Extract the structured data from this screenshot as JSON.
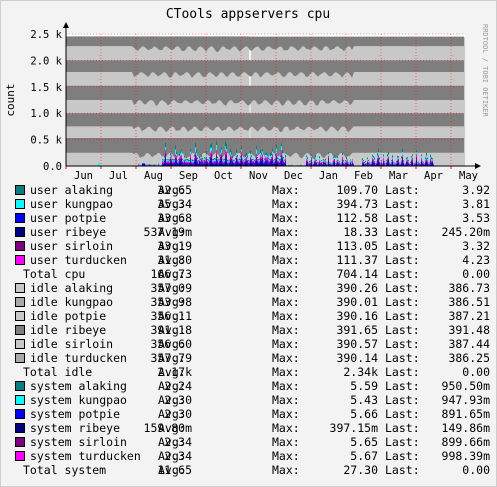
{
  "chart_data": {
    "type": "area",
    "title": "CTools appservers cpu",
    "ylabel": "count",
    "watermark": "RRDTOOL / TOBI OETIKER",
    "ylim": [
      0,
      2500
    ],
    "y_ticks": [
      {
        "value": 0,
        "label": "0.0"
      },
      {
        "value": 500,
        "label": "0.5 k"
      },
      {
        "value": 1000,
        "label": "1.0 k"
      },
      {
        "value": 1500,
        "label": "1.5 k"
      },
      {
        "value": 2000,
        "label": "2.0 k"
      },
      {
        "value": 2500,
        "label": "2.5 k"
      }
    ],
    "x_labels": [
      "Jun",
      "Jul",
      "Aug",
      "Sep",
      "Oct",
      "Nov",
      "Dec",
      "Jan",
      "Feb",
      "Mar",
      "Apr",
      "May"
    ],
    "grid": true,
    "colors": {
      "background": "#f3f3f3",
      "plot": "#ffffff",
      "grid": "#ff0000",
      "idle_light": "#c8c8c8",
      "idle_dark": "#7e7e7e"
    },
    "bands": [
      {
        "name": "idle-dark-top",
        "from": 2270,
        "to": 2450
      },
      {
        "name": "idle-dark-1",
        "from": 1780,
        "to": 2000
      },
      {
        "name": "idle-dark-2",
        "from": 1250,
        "to": 1520
      },
      {
        "name": "idle-dark-3",
        "from": 750,
        "to": 1000
      },
      {
        "name": "idle-dark-4",
        "from": 250,
        "to": 530
      }
    ],
    "legend_groups": [
      {
        "rows": [
          {
            "name": "user alaking",
            "color": "#008080",
            "avg": "32.65",
            "max": "109.70",
            "last": "3.92"
          },
          {
            "name": "user kungpao",
            "color": "#00ffff",
            "avg": "35.34",
            "max": "394.73",
            "last": "3.81"
          },
          {
            "name": "user potpie",
            "color": "#0000ff",
            "avg": "33.68",
            "max": "112.58",
            "last": "3.53"
          },
          {
            "name": "user ribeye",
            "color": "#000080",
            "avg": "537.19m",
            "max": "18.33",
            "last": "245.20m"
          },
          {
            "name": "user sirloin",
            "color": "#800080",
            "avg": "33.19",
            "max": "113.05",
            "last": "3.32"
          },
          {
            "name": "user turducken",
            "color": "#ff00ff",
            "avg": "31.80",
            "max": "111.37",
            "last": "4.23"
          }
        ],
        "total": {
          "name": "Total cpu",
          "avg": "166.73",
          "max": "704.14",
          "last": "0.00"
        }
      },
      {
        "rows": [
          {
            "name": "idle alaking",
            "color": "#c8c8c8",
            "avg": "357.09",
            "max": "390.26",
            "last": "386.73"
          },
          {
            "name": "idle kungpao",
            "color": "#a8a8a8",
            "avg": "353.98",
            "max": "390.01",
            "last": "386.51"
          },
          {
            "name": "idle potpie",
            "color": "#c8c8c8",
            "avg": "356.11",
            "max": "390.16",
            "last": "387.21"
          },
          {
            "name": "idle ribeye",
            "color": "#7e7e7e",
            "avg": "391.18",
            "max": "391.65",
            "last": "391.48"
          },
          {
            "name": "idle sirloin",
            "color": "#c8c8c8",
            "avg": "356.60",
            "max": "390.57",
            "last": "387.44"
          },
          {
            "name": "idle turducken",
            "color": "#a8a8a8",
            "avg": "357.79",
            "max": "390.14",
            "last": "386.25"
          }
        ],
        "total": {
          "name": "Total idle",
          "avg": "2.17k",
          "max": "2.34k",
          "last": "0.00"
        }
      },
      {
        "rows": [
          {
            "name": "system alaking",
            "color": "#008080",
            "avg": "2.24",
            "max": "5.59",
            "last": "950.50m"
          },
          {
            "name": "system kungpao",
            "color": "#00ffff",
            "avg": "2.30",
            "max": "5.43",
            "last": "947.93m"
          },
          {
            "name": "system potpie",
            "color": "#0000ff",
            "avg": "2.30",
            "max": "5.66",
            "last": "891.65m"
          },
          {
            "name": "system ribeye",
            "color": "#000080",
            "avg": "159.80m",
            "max": "397.15m",
            "last": "149.86m"
          },
          {
            "name": "system sirloin",
            "color": "#800080",
            "avg": "2.34",
            "max": "5.65",
            "last": "899.66m"
          },
          {
            "name": "system turducken",
            "color": "#ff00ff",
            "avg": "2.34",
            "max": "5.67",
            "last": "998.39m"
          }
        ],
        "total": {
          "name": "Total system",
          "avg": "11.65",
          "max": "27.30",
          "last": "0.00"
        }
      }
    ],
    "stat_labels": {
      "avg": "Avg:",
      "max": "Max:",
      "last": "Last:"
    }
  }
}
